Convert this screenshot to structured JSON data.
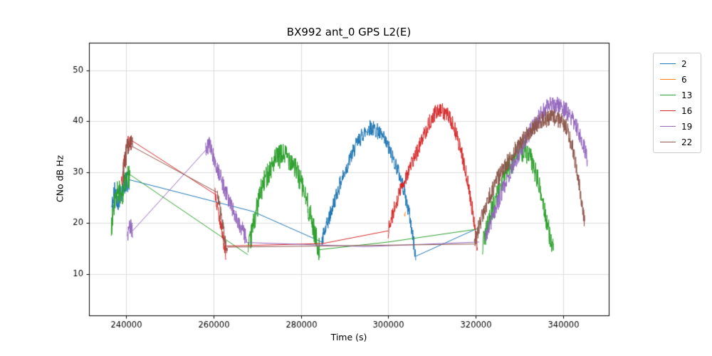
{
  "chart_data": {
    "type": "line",
    "title": "BX992 ant_0 GPS L2(E)",
    "xlabel": "Time (s)",
    "ylabel": "CNo dB Hz",
    "xlim": [
      231500,
      350500
    ],
    "ylim": [
      1.9,
      55.4
    ],
    "grid": true,
    "legend_position": "outside-right",
    "xticks": [
      {
        "v": 240000,
        "label": "240000"
      },
      {
        "v": 260000,
        "label": "260000"
      },
      {
        "v": 280000,
        "label": "280000"
      },
      {
        "v": 300000,
        "label": "300000"
      },
      {
        "v": 320000,
        "label": "320000"
      },
      {
        "v": 340000,
        "label": "340000"
      }
    ],
    "yticks": [
      {
        "v": 10,
        "label": "10"
      },
      {
        "v": 20,
        "label": "20"
      },
      {
        "v": 30,
        "label": "30"
      },
      {
        "v": 40,
        "label": "40"
      },
      {
        "v": 50,
        "label": "50"
      }
    ],
    "series": [
      {
        "name": "2",
        "color": "#1f77b4",
        "segments": [
          {
            "mode": "noisy",
            "noise": 2.2,
            "points": [
              [
                236700,
                23
              ],
              [
                237400,
                26.5
              ],
              [
                238200,
                24.5
              ],
              [
                239100,
                27
              ],
              [
                240000,
                28
              ],
              [
                240800,
                28.5
              ]
            ]
          },
          {
            "mode": "line",
            "noise": 0,
            "points": [
              [
                240800,
                28.5
              ],
              [
                269000,
                22.3
              ],
              [
                284800,
                16.3
              ]
            ]
          },
          {
            "mode": "noisy",
            "noise": 1.6,
            "points": [
              [
                284800,
                16.5
              ],
              [
                286500,
                21
              ],
              [
                288500,
                26.5
              ],
              [
                290500,
                31
              ],
              [
                292500,
                35
              ],
              [
                294200,
                37.5
              ],
              [
                295800,
                38.8
              ],
              [
                297400,
                38.2
              ],
              [
                299000,
                36.5
              ],
              [
                300500,
                34
              ],
              [
                302000,
                31
              ],
              [
                303500,
                27
              ],
              [
                305000,
                21
              ],
              [
                306300,
                13.5
              ]
            ]
          },
          {
            "mode": "line",
            "noise": 0,
            "points": [
              [
                306300,
                13.5
              ],
              [
                320500,
                19
              ]
            ]
          }
        ]
      },
      {
        "name": "6",
        "color": "#ff7f0e",
        "segments": [
          {
            "mode": "noisy",
            "noise": 0.6,
            "points": [
              [
                303700,
                21.3
              ],
              [
                303950,
                22.2
              ]
            ]
          }
        ]
      },
      {
        "name": "13",
        "color": "#2ca02c",
        "segments": [
          {
            "mode": "noisy",
            "noise": 2.4,
            "points": [
              [
                236600,
                19
              ],
              [
                237300,
                23.5
              ],
              [
                238100,
                27
              ],
              [
                239000,
                25.5
              ],
              [
                239900,
                28.5
              ],
              [
                240900,
                29.5
              ]
            ]
          },
          {
            "mode": "line",
            "noise": 0,
            "points": [
              [
                240900,
                29.5
              ],
              [
                267900,
                13.8
              ]
            ]
          },
          {
            "mode": "noisy",
            "noise": 2.4,
            "points": [
              [
                267900,
                14
              ],
              [
                269200,
                20
              ],
              [
                270600,
                25.5
              ],
              [
                272200,
                29.5
              ],
              [
                274200,
                32.5
              ],
              [
                276200,
                33.5
              ],
              [
                277800,
                32.5
              ],
              [
                279400,
                29.5
              ],
              [
                280800,
                26
              ],
              [
                282000,
                22
              ],
              [
                283200,
                18
              ],
              [
                284300,
                14.5
              ]
            ]
          },
          {
            "mode": "line",
            "noise": 0,
            "points": [
              [
                284300,
                14.8
              ],
              [
                300000,
                16.3
              ],
              [
                320200,
                18.8
              ]
            ]
          },
          {
            "mode": "noisy",
            "noise": 2.2,
            "points": [
              [
                321600,
                15.5
              ],
              [
                323200,
                21
              ],
              [
                325200,
                26.5
              ],
              [
                327200,
                30.5
              ],
              [
                329200,
                33
              ],
              [
                331000,
                34.3
              ],
              [
                332600,
                32.8
              ],
              [
                334200,
                28.5
              ],
              [
                335700,
                23
              ],
              [
                336900,
                18
              ],
              [
                337900,
                14.2
              ]
            ]
          }
        ]
      },
      {
        "name": "16",
        "color": "#d62728",
        "segments": [
          {
            "mode": "noisy",
            "noise": 1.8,
            "points": [
              [
                238900,
                27.5
              ],
              [
                239700,
                32.5
              ],
              [
                240500,
                35.8
              ],
              [
                241300,
                36.2
              ]
            ]
          },
          {
            "mode": "line",
            "noise": 0,
            "points": [
              [
                241300,
                36.2
              ],
              [
                260300,
                25.7
              ]
            ]
          },
          {
            "mode": "noisy",
            "noise": 1.4,
            "points": [
              [
                260300,
                25.7
              ],
              [
                261200,
                21.5
              ],
              [
                262000,
                18
              ],
              [
                262800,
                14
              ]
            ]
          },
          {
            "mode": "line",
            "noise": 0,
            "points": [
              [
                262800,
                15.5
              ],
              [
                285000,
                16
              ],
              [
                300000,
                18.5
              ]
            ]
          },
          {
            "mode": "noisy",
            "noise": 1.6,
            "points": [
              [
                300000,
                18.5
              ],
              [
                301800,
                24
              ],
              [
                303200,
                27.5
              ],
              [
                304800,
                30.5
              ],
              [
                306400,
                33.5
              ],
              [
                308000,
                37
              ],
              [
                309600,
                40
              ],
              [
                311000,
                41.8
              ],
              [
                312400,
                42
              ],
              [
                313800,
                41
              ],
              [
                315200,
                38.5
              ],
              [
                316600,
                34.5
              ],
              [
                318000,
                29
              ],
              [
                319300,
                22.5
              ],
              [
                320400,
                15.8
              ]
            ]
          }
        ]
      },
      {
        "name": "19",
        "color": "#9467bd",
        "segments": [
          {
            "mode": "noisy",
            "noise": 1.6,
            "points": [
              [
                240300,
                17.5
              ],
              [
                240900,
                19.5
              ],
              [
                241500,
                18.5
              ]
            ]
          },
          {
            "mode": "line",
            "noise": 0,
            "points": [
              [
                241500,
                18.5
              ],
              [
                258200,
                34.3
              ]
            ]
          },
          {
            "mode": "noisy",
            "noise": 1.7,
            "points": [
              [
                258200,
                34.3
              ],
              [
                259000,
                35.5
              ],
              [
                260000,
                33
              ],
              [
                261200,
                30
              ],
              [
                262400,
                27
              ],
              [
                263800,
                24
              ],
              [
                265300,
                21
              ],
              [
                266700,
                18.5
              ],
              [
                267600,
                16.8
              ]
            ]
          },
          {
            "mode": "line",
            "noise": 0,
            "points": [
              [
                267600,
                16.2
              ],
              [
                295000,
                15.4
              ],
              [
                320800,
                16.3
              ]
            ]
          },
          {
            "mode": "noisy",
            "noise": 1.7,
            "points": [
              [
                322300,
                17
              ],
              [
                324200,
                22
              ],
              [
                326200,
                26.5
              ],
              [
                328200,
                30.5
              ],
              [
                330200,
                34
              ],
              [
                332200,
                37.5
              ],
              [
                334200,
                40.5
              ],
              [
                336000,
                42.5
              ],
              [
                337600,
                43.3
              ],
              [
                339200,
                43
              ],
              [
                340800,
                42
              ],
              [
                342200,
                40.3
              ],
              [
                343600,
                38
              ],
              [
                344800,
                35.3
              ],
              [
                345600,
                32.5
              ]
            ]
          }
        ]
      },
      {
        "name": "22",
        "color": "#8c564b",
        "segments": [
          {
            "mode": "noisy",
            "noise": 2.2,
            "points": [
              [
                239300,
                29.5
              ],
              [
                240100,
                34
              ],
              [
                240800,
                36.5
              ],
              [
                241500,
                35
              ]
            ]
          },
          {
            "mode": "line",
            "noise": 0,
            "points": [
              [
                241500,
                35
              ],
              [
                260900,
                26
              ]
            ]
          },
          {
            "mode": "noisy",
            "noise": 1.5,
            "points": [
              [
                260900,
                26
              ],
              [
                261700,
                21.5
              ],
              [
                262500,
                17.5
              ],
              [
                263200,
                13.5
              ]
            ]
          },
          {
            "mode": "line",
            "noise": 0,
            "points": [
              [
                263200,
                15.3
              ],
              [
                292000,
                15.6
              ],
              [
                319700,
                15.9
              ]
            ]
          },
          {
            "mode": "noisy",
            "noise": 1.7,
            "points": [
              [
                319700,
                16
              ],
              [
                321200,
                20.5
              ],
              [
                322800,
                24.5
              ],
              [
                324600,
                28
              ],
              [
                326600,
                31
              ],
              [
                328800,
                34
              ],
              [
                331000,
                36.5
              ],
              [
                333200,
                38.8
              ],
              [
                335400,
                40.2
              ],
              [
                337400,
                40.8
              ],
              [
                339400,
                40.3
              ],
              [
                341000,
                38.5
              ],
              [
                342300,
                34.5
              ],
              [
                343400,
                29.5
              ],
              [
                344300,
                24
              ],
              [
                345000,
                19.5
              ]
            ]
          }
        ]
      }
    ],
    "colors": {
      "grid": "#d4d4d4",
      "spine": "#000000",
      "tick_label": "#000000",
      "background": "#ffffff"
    }
  }
}
